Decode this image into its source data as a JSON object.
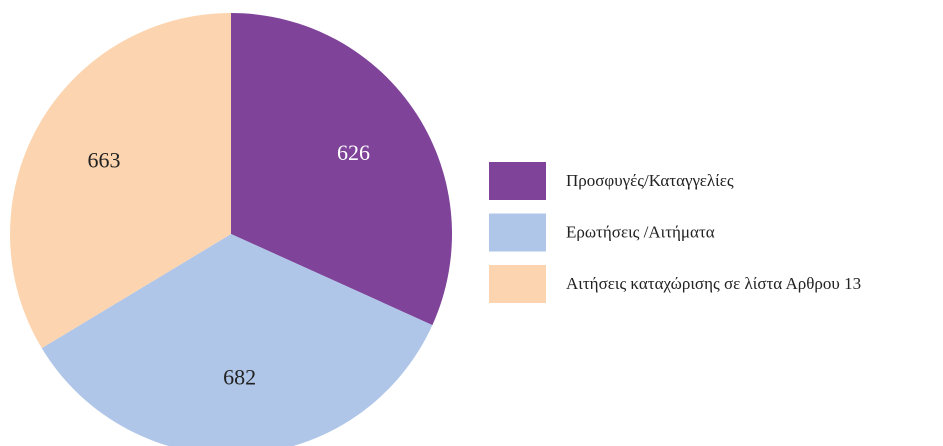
{
  "chart_data": {
    "type": "pie",
    "categories": [
      "Προσφυγές/Καταγγελίες",
      "Ερωτήσεις /Αιτήματα",
      "Αιτήσεις καταχώρισης σε λίστα Αρθρου 13"
    ],
    "values": [
      626,
      682,
      663
    ],
    "colors": [
      "#7f4499",
      "#afc6e8",
      "#fcd5b0"
    ],
    "legend": "right"
  }
}
